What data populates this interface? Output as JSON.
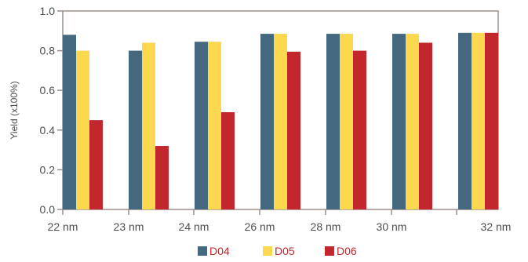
{
  "chart_data": {
    "type": "bar",
    "categories": [
      "22 nm",
      "23 nm",
      "24 nm",
      "26 nm",
      "28 nm",
      "30 nm",
      "32 nm"
    ],
    "series": [
      {
        "name": "D04",
        "color": "#44697e",
        "values": [
          0.88,
          0.8,
          0.845,
          0.885,
          0.885,
          0.885,
          0.89
        ]
      },
      {
        "name": "D05",
        "color": "#fcd84f",
        "values": [
          0.8,
          0.84,
          0.845,
          0.885,
          0.885,
          0.885,
          0.89
        ]
      },
      {
        "name": "D06",
        "color": "#c1272d",
        "values": [
          0.45,
          0.32,
          0.49,
          0.795,
          0.8,
          0.84,
          0.89
        ]
      }
    ],
    "ylabel": "Yield (x100%)",
    "ylim": [
      0,
      1.0
    ],
    "yticks": [
      "0.0",
      "0.2",
      "0.4",
      "0.6",
      "0.8",
      "1.0"
    ],
    "grid": false,
    "legend_position": "bottom-center",
    "legend_text_color": "#c1272d",
    "axis_color": "#9e8f8a"
  }
}
